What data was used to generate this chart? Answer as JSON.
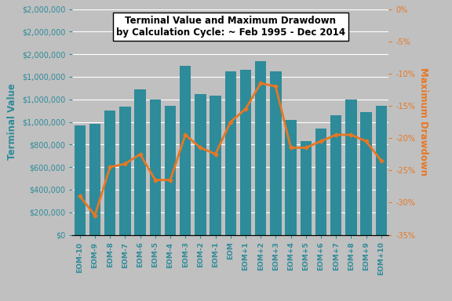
{
  "categories": [
    "EOM-10",
    "EOM-9",
    "EOM-8",
    "EOM-7",
    "EOM-6",
    "EOM-5",
    "EOM-4",
    "EOM-3",
    "EOM-2",
    "EOM-1",
    "EOM",
    "EOM+1",
    "EOM+2",
    "EOM+3",
    "EOM+4",
    "EOM+5",
    "EOM+6",
    "EOM+7",
    "EOM+8",
    "EOM+9",
    "EOM+10"
  ],
  "terminal_values": [
    970000,
    980000,
    1100000,
    1135000,
    1285000,
    1200000,
    1140000,
    1500000,
    1250000,
    1230000,
    1445000,
    1460000,
    1540000,
    1450000,
    1020000,
    830000,
    940000,
    1060000,
    1200000,
    1090000,
    1140000
  ],
  "drawdown_values": [
    -0.29,
    -0.32,
    -0.245,
    -0.24,
    -0.225,
    -0.265,
    -0.265,
    -0.195,
    -0.215,
    -0.225,
    -0.175,
    -0.155,
    -0.115,
    -0.12,
    -0.215,
    -0.215,
    -0.205,
    -0.195,
    -0.195,
    -0.205,
    -0.235
  ],
  "bar_color": "#2E8B9A",
  "line_color": "#E87722",
  "background_color": "#C0C0C0",
  "left_axis_color": "#2E8B9A",
  "right_axis_color": "#E87722",
  "title_line1": "Terminal Value and Maximum Drawdown",
  "title_line2": "by Calculation Cycle: ~ Feb 1995 - Dec 2014",
  "ylabel_left": "Terminal Value",
  "ylabel_right": "Maximum Drawdown",
  "ylim_left": [
    0,
    2000000
  ],
  "ylim_right": [
    -0.35,
    0
  ],
  "left_ticks": [
    0,
    200000,
    400000,
    600000,
    800000,
    1000000,
    1200000,
    1400000,
    1600000,
    1800000,
    2000000
  ],
  "right_ticks": [
    0,
    -0.05,
    -0.1,
    -0.15,
    -0.2,
    -0.25,
    -0.3,
    -0.35
  ]
}
